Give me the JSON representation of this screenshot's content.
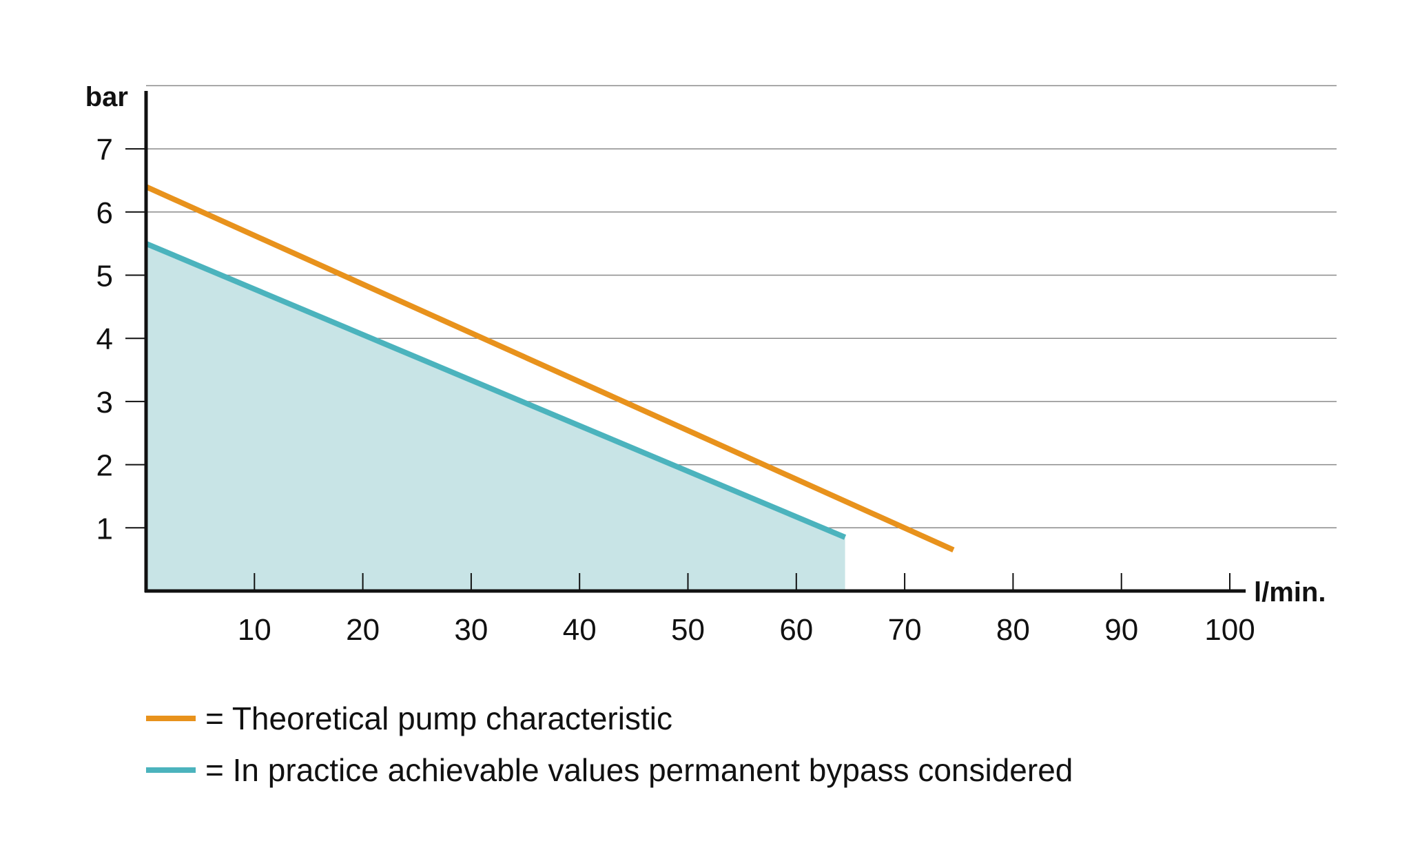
{
  "chart_data": {
    "type": "line",
    "ylabel": "bar",
    "xlabel": "l/min.",
    "xlim": [
      0,
      102
    ],
    "ylim": [
      0,
      8
    ],
    "x_ticks": [
      10,
      20,
      30,
      40,
      50,
      60,
      70,
      80,
      90,
      100
    ],
    "y_ticks": [
      1,
      2,
      3,
      4,
      5,
      6,
      7
    ],
    "grid": "horizontal",
    "legend_position": "bottom-left",
    "series": [
      {
        "name": "= Theoretical pump characteristic",
        "color": "#E8921C",
        "points": [
          [
            0,
            6.4
          ],
          [
            74.5,
            0.65
          ]
        ]
      },
      {
        "name": "= In practice achievable values permanent bypass considered",
        "color": "#4BB3BD",
        "fill": "#C8E4E6",
        "area": true,
        "points": [
          [
            0,
            5.5
          ],
          [
            64.5,
            0.85
          ]
        ]
      }
    ]
  }
}
